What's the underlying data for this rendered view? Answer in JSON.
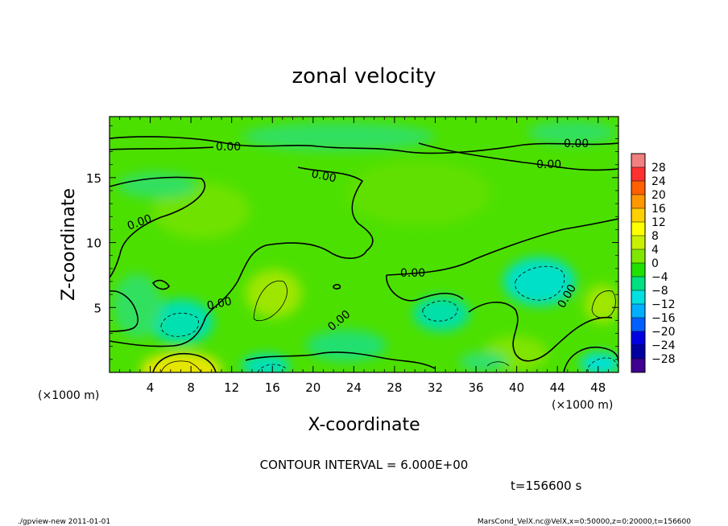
{
  "chart_data": {
    "type": "heatmap",
    "title": "zonal velocity",
    "xlabel": "X-coordinate",
    "ylabel": "Z-coordinate",
    "x_unit": "(×1000 m)",
    "y_unit": "(×1000 m)",
    "xlim": [
      0,
      50
    ],
    "ylim": [
      0,
      19.7
    ],
    "x_ticks": [
      4,
      8,
      12,
      16,
      20,
      24,
      28,
      32,
      36,
      40,
      44,
      48
    ],
    "y_ticks": [
      5,
      10,
      15
    ],
    "contour_interval_text": "CONTOUR INTERVAL = 6.000E+00",
    "contour_labels": [
      "0.00",
      "0.00",
      "0.00",
      "0.00",
      "0.00",
      "0.00",
      "0.00",
      "0.00",
      "0.00"
    ],
    "colorbar": {
      "levels": [
        28,
        24,
        20,
        16,
        12,
        8,
        4,
        0,
        -4,
        -8,
        -12,
        -16,
        -20,
        -24,
        -28
      ],
      "level_labels": [
        "28",
        "24",
        "20",
        "16",
        "12",
        "8",
        "4",
        "0",
        "−4",
        "−8",
        "−12",
        "−16",
        "−20",
        "−24",
        "−28"
      ],
      "colors": [
        "#f08080",
        "#ff3030",
        "#ff6000",
        "#ff9800",
        "#ffd000",
        "#ffff00",
        "#c8f000",
        "#80e800",
        "#20e000",
        "#00e080",
        "#00e0e0",
        "#00b0ff",
        "#0060ff",
        "#0000e0",
        "#0000a0",
        "#400090"
      ]
    },
    "time_text": "t=156600 s"
  },
  "footer": {
    "left": "./gpview-new  2011-01-01",
    "right": "MarsCond_VelX.nc@VelX,x=0:50000,z=0:20000,t=156600"
  }
}
